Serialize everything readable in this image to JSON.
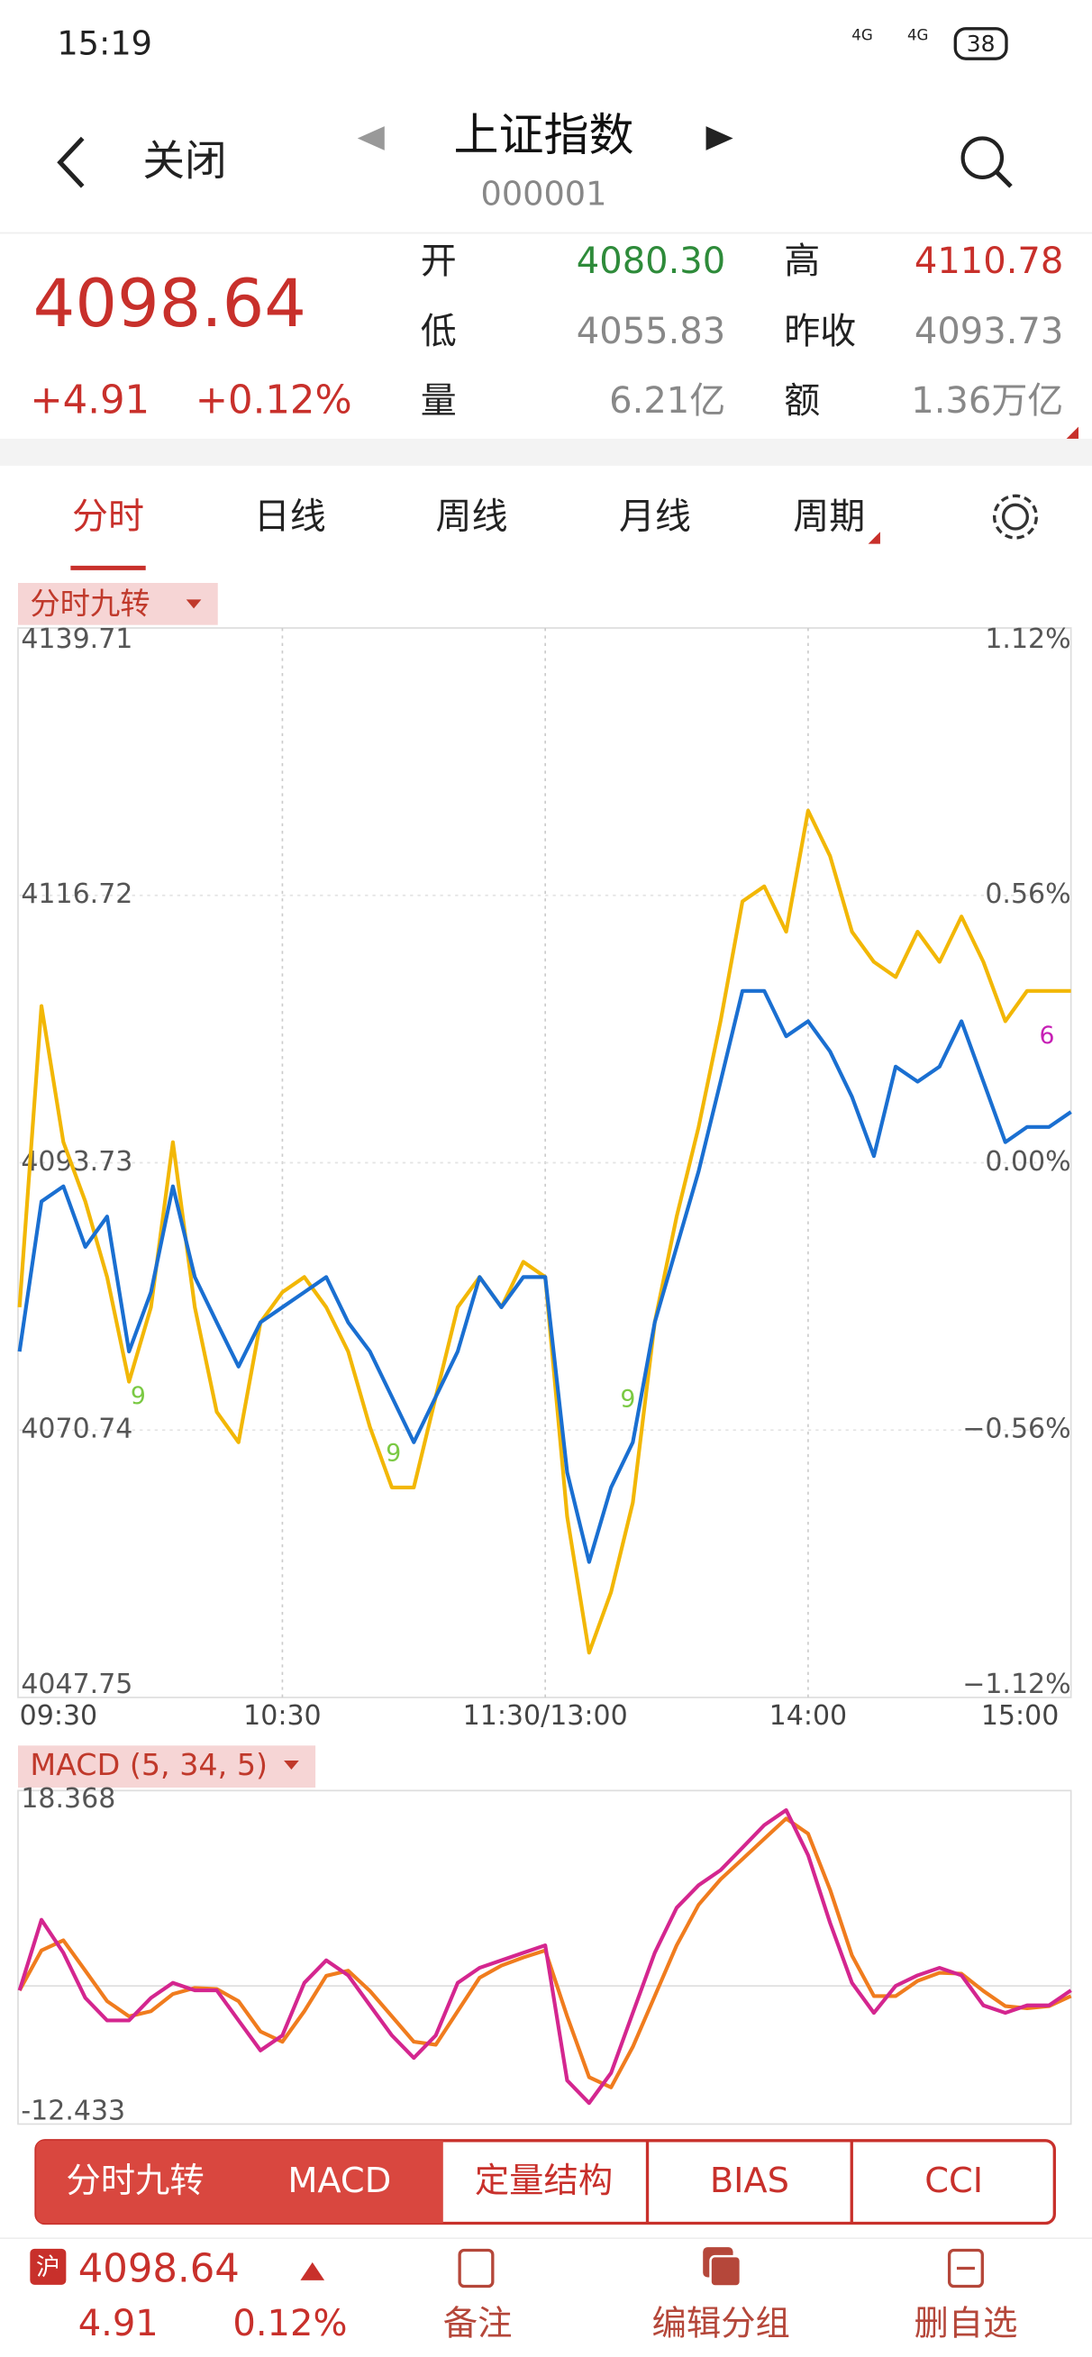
{
  "status_bar": {
    "time": "15:19",
    "signal_1": "4G",
    "signal_2": "4G",
    "battery": "38"
  },
  "header": {
    "back": "关闭",
    "title": "上证指数",
    "code": "000001"
  },
  "quote": {
    "price": "4098.64",
    "change": "+4.91",
    "change_pct": "+0.12%",
    "fields": [
      {
        "label": "开",
        "value": "4080.30"
      },
      {
        "label": "高",
        "value": "4110.78"
      },
      {
        "label": "低",
        "value": "4055.83"
      },
      {
        "label": "昨收",
        "value": "4093.73"
      },
      {
        "label": "量",
        "value": "6.21亿"
      },
      {
        "label": "额",
        "value": "1.36万亿"
      }
    ]
  },
  "tabs": [
    "分时",
    "日线",
    "周线",
    "月线",
    "周期"
  ],
  "intraday": {
    "indicator": "分时九转",
    "ylim": [
      4047.75,
      4139.71
    ],
    "yticks": [
      {
        "value": 4139.71,
        "label": "4139.71"
      },
      {
        "value": 4116.72,
        "label": "4116.72"
      },
      {
        "value": 4093.73,
        "label": "4093.73"
      },
      {
        "value": 4070.74,
        "label": "4070.74"
      },
      {
        "value": 4047.75,
        "label": "4047.75"
      }
    ],
    "y2lim": [
      -1.12,
      1.12
    ],
    "y2ticks": [
      {
        "value": 1.12,
        "label": "1.12%"
      },
      {
        "value": 0.56,
        "label": "0.56%"
      },
      {
        "value": 0,
        "label": "0.00%"
      },
      {
        "value": -0.56,
        "label": "−0.56%"
      },
      {
        "value": -1.12,
        "label": "−1.12%"
      }
    ],
    "xticks": [
      "09:30",
      "10:30",
      "11:30/13:00",
      "14:00",
      "15:00"
    ],
    "series": [
      {
        "color": "#f2b705",
        "values": [
          4081.3,
          4107.2,
          4095.5,
          4090.4,
          4083.9,
          4074.9,
          4081.3,
          4095.5,
          4081.3,
          4072.3,
          4069.7,
          4080.0,
          4082.6,
          4083.9,
          4081.3,
          4077.5,
          4071.0,
          4065.8,
          4065.8,
          4073.6,
          4081.3,
          4083.9,
          4081.3,
          4085.2,
          4083.9,
          4063.3,
          4051.6,
          4056.8,
          4064.5,
          4080.0,
          4089.1,
          4096.8,
          4105.9,
          4116.2,
          4117.5,
          4113.6,
          4124.0,
          4120.1,
          4113.6,
          4111.0,
          4109.7,
          4113.6,
          4111.0,
          4114.9,
          4111.0,
          4105.9,
          4108.5,
          4108.5,
          4108.5
        ]
      },
      {
        "color": "#1a6fd1",
        "values": [
          4077.5,
          4090.4,
          4091.7,
          4086.5,
          4089.1,
          4077.5,
          4082.6,
          4091.7,
          4083.9,
          4080.0,
          4076.2,
          4080.0,
          4081.3,
          4082.6,
          4083.9,
          4080.0,
          4077.5,
          4073.6,
          4069.7,
          4073.6,
          4077.5,
          4083.9,
          4081.3,
          4083.9,
          4083.9,
          4067.1,
          4059.4,
          4065.8,
          4069.7,
          4080.0,
          4086.5,
          4093.0,
          4100.7,
          4108.5,
          4108.5,
          4104.6,
          4105.9,
          4103.3,
          4099.4,
          4094.3,
          4102.0,
          4100.7,
          4102.0,
          4105.9,
          4100.7,
          4095.5,
          4096.8,
          4096.8,
          4098.1
        ]
      }
    ],
    "annotations": [
      "9",
      "9",
      "9",
      "6"
    ]
  },
  "macd": {
    "label": "MACD (5, 34, 5)",
    "ylim": [
      -12.433,
      18.368
    ],
    "yticks": [
      18.368,
      -12.433
    ],
    "series": [
      {
        "color": "#f07c1e",
        "values": [
          -0.44,
          3.5,
          4.5,
          1.5,
          -1.5,
          -3.0,
          -2.5,
          -0.8,
          -0.2,
          -0.3,
          -1.5,
          -4.5,
          -5.5,
          -2.5,
          1.0,
          1.5,
          -0.5,
          -3.0,
          -5.5,
          -5.8,
          -2.5,
          0.8,
          2.0,
          2.8,
          3.5,
          -3.0,
          -9.0,
          -10.0,
          -6.0,
          -1.0,
          4.0,
          8.0,
          10.5,
          12.5,
          14.5,
          16.5,
          15.0,
          9.5,
          3.0,
          -1.0,
          -1.0,
          0.5,
          1.3,
          1.2,
          -0.5,
          -2.0,
          -2.2,
          -2.0,
          -1.0
        ]
      },
      {
        "color": "#d4268f",
        "values": [
          -0.44,
          6.52,
          3.26,
          -1.18,
          -3.4,
          -3.4,
          -1.18,
          0.3,
          -0.44,
          -0.44,
          -3.4,
          -6.36,
          -4.88,
          0.3,
          2.52,
          1.04,
          -1.92,
          -4.88,
          -7.1,
          -4.88,
          0.3,
          1.78,
          2.52,
          3.26,
          4.0,
          -9.32,
          -11.55,
          -8.58,
          -2.66,
          3.26,
          7.71,
          9.93,
          11.41,
          13.63,
          15.85,
          17.33,
          12.89,
          6.23,
          0.3,
          -2.66,
          0.01,
          1.04,
          1.78,
          1.04,
          -1.92,
          -2.66,
          -1.92,
          -1.92,
          -0.44
        ]
      }
    ]
  },
  "indicator_tabs": [
    "分时九转",
    "MACD",
    "定量结构",
    "BIAS",
    "CCI"
  ],
  "bottom_bar": {
    "market": "沪",
    "price": "4098.64",
    "change": "4.91",
    "change_pct": "0.12%",
    "actions": [
      "备注",
      "编辑分组",
      "删自选"
    ]
  }
}
